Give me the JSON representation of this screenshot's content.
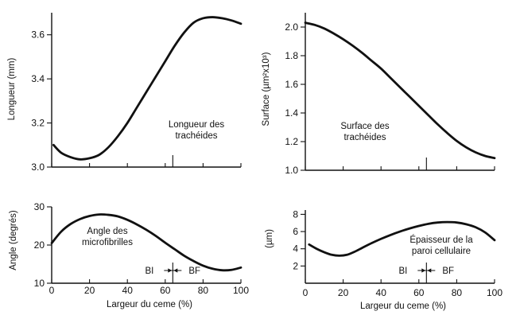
{
  "chart_data": [
    {
      "id": "longueur",
      "type": "line",
      "ylabel": "Longueur (mm)",
      "xlim": [
        0,
        100
      ],
      "ylim": [
        3.0,
        3.7
      ],
      "yticks": [
        "3.0",
        "3.2",
        "3.4",
        "3.6"
      ],
      "ytick_values": [
        3.0,
        3.2,
        3.4,
        3.6
      ],
      "xtick_values": [
        0,
        20,
        40,
        60,
        80,
        100
      ],
      "xticks": [],
      "xlabel": "",
      "marker_x": 64,
      "annotation": [
        "Longueur des",
        "trachéides"
      ],
      "series": [
        {
          "x": [
            1,
            5,
            10,
            15,
            20,
            25,
            30,
            35,
            40,
            45,
            50,
            55,
            60,
            65,
            70,
            75,
            80,
            85,
            90,
            95,
            100
          ],
          "y": [
            3.1,
            3.065,
            3.045,
            3.035,
            3.04,
            3.055,
            3.09,
            3.14,
            3.2,
            3.27,
            3.34,
            3.41,
            3.48,
            3.55,
            3.61,
            3.655,
            3.675,
            3.68,
            3.675,
            3.665,
            3.65
          ]
        }
      ]
    },
    {
      "id": "surface",
      "type": "line",
      "ylabel": "Surface (µm²x10³)",
      "xlim": [
        0,
        100
      ],
      "ylim": [
        1.0,
        2.1
      ],
      "yticks": [
        "1.0",
        "1.2",
        "1.4",
        "1.6",
        "1.8",
        "2.0"
      ],
      "ytick_values": [
        1.0,
        1.2,
        1.4,
        1.6,
        1.8,
        2.0
      ],
      "xtick_values": [
        0,
        20,
        40,
        60,
        80,
        100
      ],
      "xticks": [],
      "xlabel": "",
      "marker_x": 64,
      "annotation": [
        "Surface des",
        "trachéides"
      ],
      "series": [
        {
          "x": [
            0,
            5,
            10,
            15,
            20,
            25,
            30,
            35,
            40,
            45,
            50,
            55,
            60,
            65,
            70,
            75,
            80,
            85,
            90,
            95,
            100
          ],
          "y": [
            2.03,
            2.015,
            1.99,
            1.955,
            1.915,
            1.87,
            1.82,
            1.765,
            1.71,
            1.645,
            1.58,
            1.515,
            1.45,
            1.385,
            1.32,
            1.26,
            1.205,
            1.16,
            1.125,
            1.1,
            1.085
          ]
        }
      ]
    },
    {
      "id": "angle",
      "type": "line",
      "ylabel": "Angle (degrés)",
      "xlim": [
        0,
        100
      ],
      "ylim": [
        10,
        30
      ],
      "yticks": [
        "10",
        "20",
        "30"
      ],
      "ytick_values": [
        10,
        20,
        30
      ],
      "xtick_values": [
        0,
        20,
        40,
        60,
        80,
        100
      ],
      "xticks": [
        "0",
        "20",
        "40",
        "60",
        "80",
        "100"
      ],
      "xlabel": "Largeur du ceme (%)",
      "marker_x": 64,
      "bi_label": "BI",
      "bf_label": "BF",
      "annotation": [
        "Angle des",
        "microfibrilles"
      ],
      "series": [
        {
          "x": [
            0,
            5,
            10,
            15,
            20,
            25,
            30,
            35,
            40,
            45,
            50,
            55,
            60,
            65,
            70,
            75,
            80,
            85,
            90,
            95,
            100
          ],
          "y": [
            20.5,
            23.5,
            25.5,
            26.8,
            27.6,
            28.0,
            27.9,
            27.5,
            26.6,
            25.4,
            24.0,
            22.4,
            20.6,
            18.9,
            17.2,
            15.8,
            14.6,
            13.8,
            13.4,
            13.5,
            14.1
          ]
        }
      ]
    },
    {
      "id": "epaisseur",
      "type": "line",
      "ylabel": "(µm)",
      "xlim": [
        0,
        100
      ],
      "ylim": [
        0,
        8.5
      ],
      "yticks": [
        "2",
        "4",
        "6",
        "8"
      ],
      "ytick_values": [
        2,
        4,
        6,
        8
      ],
      "xtick_values": [
        0,
        20,
        40,
        60,
        80,
        100
      ],
      "xticks": [
        "0",
        "20",
        "40",
        "60",
        "80",
        "100"
      ],
      "xlabel": "Largeur du ceme (%)",
      "marker_x": 64,
      "bi_label": "BI",
      "bf_label": "BF",
      "annotation": [
        "Épaisseur de la",
        "paroi cellulaire"
      ],
      "series": [
        {
          "x": [
            2,
            6,
            10,
            14,
            18,
            22,
            26,
            30,
            35,
            40,
            45,
            50,
            55,
            60,
            65,
            70,
            75,
            80,
            85,
            90,
            95,
            100
          ],
          "y": [
            4.5,
            4.0,
            3.6,
            3.3,
            3.2,
            3.3,
            3.65,
            4.1,
            4.65,
            5.15,
            5.6,
            6.0,
            6.35,
            6.65,
            6.9,
            7.05,
            7.1,
            7.05,
            6.85,
            6.5,
            5.9,
            5.0
          ]
        }
      ]
    }
  ]
}
